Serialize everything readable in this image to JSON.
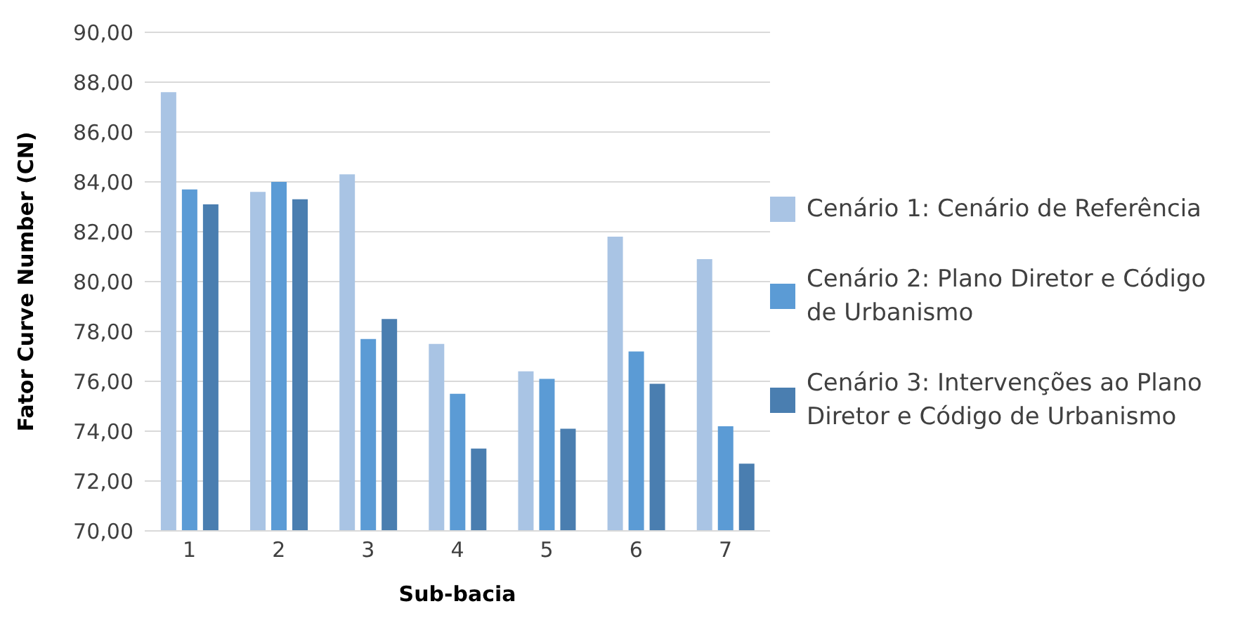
{
  "chart_data": {
    "type": "bar",
    "xlabel": "Sub-bacia",
    "ylabel": "Fator Curve Number (CN)",
    "categories": [
      "1",
      "2",
      "3",
      "4",
      "5",
      "6",
      "7"
    ],
    "series": [
      {
        "name": "Cenário 1: Cenário de Referência",
        "color": "#a9c4e4",
        "values": [
          87.6,
          83.6,
          84.3,
          77.5,
          76.4,
          81.8,
          80.9
        ]
      },
      {
        "name": "Cenário 2: Plano Diretor e Código de Urbanismo",
        "color": "#5b9bd5",
        "values": [
          83.7,
          84.0,
          77.7,
          75.5,
          76.1,
          77.2,
          74.2
        ]
      },
      {
        "name": "Cenário 3: Intervenções ao Plano Diretor e Código de Urbanismo",
        "color": "#4a7eb0",
        "values": [
          83.1,
          83.3,
          78.5,
          73.3,
          74.1,
          75.9,
          72.7
        ]
      }
    ],
    "ylim": [
      70,
      90
    ],
    "yticks": [
      {
        "value": 70,
        "label": "70,00"
      },
      {
        "value": 72,
        "label": "72,00"
      },
      {
        "value": 74,
        "label": "74,00"
      },
      {
        "value": 76,
        "label": "76,00"
      },
      {
        "value": 78,
        "label": "78,00"
      },
      {
        "value": 80,
        "label": "80,00"
      },
      {
        "value": 82,
        "label": "82,00"
      },
      {
        "value": 84,
        "label": "84,00"
      },
      {
        "value": 86,
        "label": "86,00"
      },
      {
        "value": 88,
        "label": "88,00"
      },
      {
        "value": 90,
        "label": "90,00"
      }
    ],
    "grid": "y",
    "legend": "right"
  }
}
